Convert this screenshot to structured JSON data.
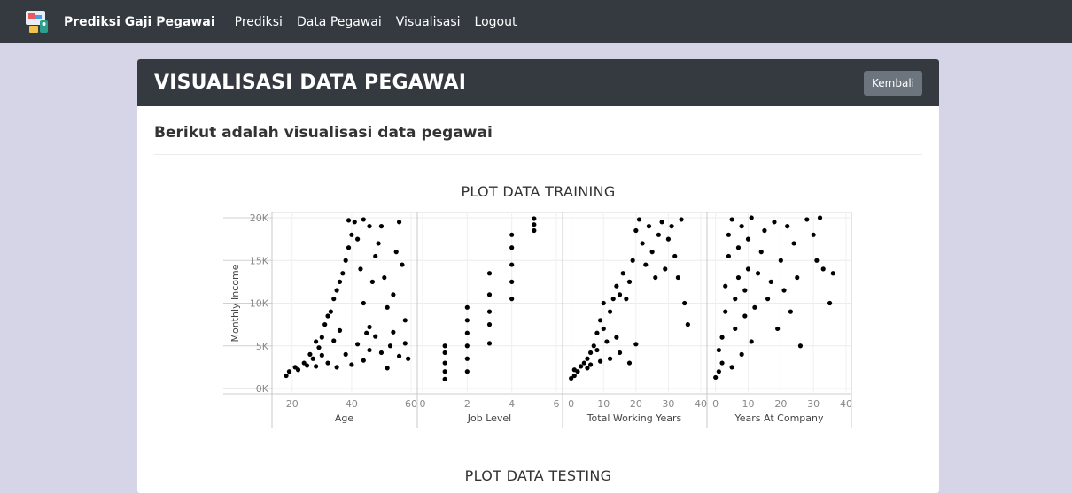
{
  "navbar": {
    "brand": "Prediksi Gaji Pegawai",
    "links": [
      {
        "label": "Prediksi"
      },
      {
        "label": "Data Pegawai"
      },
      {
        "label": "Visualisasi"
      },
      {
        "label": "Logout"
      }
    ]
  },
  "card": {
    "title": "VISUALISASI DATA PEGAWAI",
    "back_button": "Kembali",
    "intro": "Berikut adalah visualisasi data pegawai",
    "plot_training_title": "PLOT DATA TRAINING",
    "plot_testing_title": "PLOT DATA TESTING"
  },
  "chart_data": {
    "type": "scatter",
    "title": "PLOT DATA TRAINING",
    "ylabel": "Monthly Income",
    "ylim": [
      0,
      20000
    ],
    "y_ticks": [
      "0K",
      "5K",
      "10K",
      "15K",
      "20K"
    ],
    "y_tick_values": [
      0,
      5000,
      10000,
      15000,
      20000
    ],
    "grid": true,
    "panels": [
      {
        "xlabel": "Age",
        "xlim": [
          15,
          60
        ],
        "x_ticks": [
          20,
          40,
          60
        ],
        "x_tick_labels": [
          "20",
          "40",
          "60"
        ],
        "points": [
          [
            18,
            1500
          ],
          [
            19,
            2000
          ],
          [
            21,
            2500
          ],
          [
            22,
            2200
          ],
          [
            24,
            3000
          ],
          [
            25,
            2700
          ],
          [
            26,
            4000
          ],
          [
            27,
            3500
          ],
          [
            28,
            5500
          ],
          [
            29,
            4800
          ],
          [
            30,
            6000
          ],
          [
            31,
            7500
          ],
          [
            32,
            8500
          ],
          [
            33,
            9000
          ],
          [
            34,
            10500
          ],
          [
            35,
            11500
          ],
          [
            36,
            12500
          ],
          [
            37,
            13500
          ],
          [
            38,
            15000
          ],
          [
            39,
            16500
          ],
          [
            40,
            18000
          ],
          [
            41,
            19500
          ],
          [
            42,
            17500
          ],
          [
            43,
            14000
          ],
          [
            44,
            10000
          ],
          [
            45,
            6500
          ],
          [
            46,
            4500
          ],
          [
            47,
            12500
          ],
          [
            48,
            15500
          ],
          [
            49,
            17000
          ],
          [
            50,
            19000
          ],
          [
            51,
            13000
          ],
          [
            52,
            9500
          ],
          [
            53,
            5000
          ],
          [
            54,
            11000
          ],
          [
            55,
            16000
          ],
          [
            56,
            19500
          ],
          [
            57,
            14500
          ],
          [
            58,
            8000
          ],
          [
            59,
            3500
          ],
          [
            32,
            3000
          ],
          [
            35,
            2500
          ],
          [
            38,
            4000
          ],
          [
            40,
            2800
          ],
          [
            42,
            5200
          ],
          [
            44,
            3300
          ],
          [
            36,
            6800
          ],
          [
            34,
            5600
          ],
          [
            30,
            3900
          ],
          [
            28,
            2600
          ],
          [
            46,
            7200
          ],
          [
            48,
            6100
          ],
          [
            50,
            4200
          ],
          [
            52,
            2400
          ],
          [
            54,
            6600
          ],
          [
            56,
            3800
          ],
          [
            58,
            5300
          ],
          [
            44,
            19800
          ],
          [
            46,
            19000
          ],
          [
            39,
            19700
          ]
        ]
      },
      {
        "xlabel": "Job Level",
        "xlim": [
          0,
          6
        ],
        "x_ticks": [
          0,
          2,
          4,
          6
        ],
        "x_tick_labels": [
          "0",
          "2",
          "4",
          "6"
        ],
        "points": [
          [
            1,
            1100
          ],
          [
            1,
            2000
          ],
          [
            1,
            3000
          ],
          [
            1,
            4200
          ],
          [
            1,
            5000
          ],
          [
            2,
            2000
          ],
          [
            2,
            3500
          ],
          [
            2,
            5000
          ],
          [
            2,
            6500
          ],
          [
            2,
            8000
          ],
          [
            2,
            9500
          ],
          [
            3,
            5300
          ],
          [
            3,
            7500
          ],
          [
            3,
            9000
          ],
          [
            3,
            11000
          ],
          [
            3,
            13500
          ],
          [
            4,
            10500
          ],
          [
            4,
            12500
          ],
          [
            4,
            14500
          ],
          [
            4,
            16500
          ],
          [
            4,
            18000
          ],
          [
            5,
            18500
          ],
          [
            5,
            19200
          ],
          [
            5,
            19900
          ]
        ]
      },
      {
        "xlabel": "Total Working Years",
        "xlim": [
          -1,
          40
        ],
        "x_ticks": [
          0,
          10,
          20,
          30,
          40
        ],
        "x_tick_labels": [
          "0",
          "10",
          "20",
          "30",
          "40"
        ],
        "points": [
          [
            0,
            1200
          ],
          [
            1,
            1500
          ],
          [
            1,
            2200
          ],
          [
            2,
            2000
          ],
          [
            3,
            2600
          ],
          [
            4,
            3000
          ],
          [
            5,
            3500
          ],
          [
            5,
            2400
          ],
          [
            6,
            4200
          ],
          [
            7,
            5000
          ],
          [
            8,
            4500
          ],
          [
            8,
            6500
          ],
          [
            9,
            8000
          ],
          [
            10,
            7000
          ],
          [
            10,
            10000
          ],
          [
            11,
            5500
          ],
          [
            12,
            9000
          ],
          [
            13,
            10500
          ],
          [
            14,
            12000
          ],
          [
            15,
            11000
          ],
          [
            16,
            13500
          ],
          [
            17,
            10500
          ],
          [
            18,
            12500
          ],
          [
            19,
            15000
          ],
          [
            20,
            18500
          ],
          [
            21,
            19800
          ],
          [
            22,
            17000
          ],
          [
            23,
            14500
          ],
          [
            24,
            19000
          ],
          [
            25,
            16000
          ],
          [
            26,
            13000
          ],
          [
            27,
            18000
          ],
          [
            28,
            19500
          ],
          [
            29,
            14000
          ],
          [
            30,
            17500
          ],
          [
            31,
            19000
          ],
          [
            32,
            15500
          ],
          [
            33,
            13000
          ],
          [
            34,
            19800
          ],
          [
            35,
            10000
          ],
          [
            36,
            7500
          ],
          [
            12,
            3500
          ],
          [
            15,
            4200
          ],
          [
            18,
            3000
          ],
          [
            6,
            2800
          ],
          [
            9,
            3200
          ],
          [
            14,
            6000
          ],
          [
            20,
            5200
          ]
        ]
      },
      {
        "xlabel": "Years At Company",
        "xlim": [
          -1,
          40
        ],
        "x_ticks": [
          0,
          10,
          20,
          30,
          40
        ],
        "x_tick_labels": [
          "0",
          "10",
          "20",
          "30",
          "40"
        ],
        "points": [
          [
            0,
            1300
          ],
          [
            1,
            2000
          ],
          [
            1,
            4500
          ],
          [
            2,
            3000
          ],
          [
            2,
            6000
          ],
          [
            3,
            9000
          ],
          [
            3,
            12000
          ],
          [
            4,
            15500
          ],
          [
            4,
            18000
          ],
          [
            5,
            19800
          ],
          [
            5,
            2500
          ],
          [
            6,
            7000
          ],
          [
            6,
            10500
          ],
          [
            7,
            13000
          ],
          [
            7,
            16500
          ],
          [
            8,
            19000
          ],
          [
            8,
            4000
          ],
          [
            9,
            8500
          ],
          [
            9,
            11500
          ],
          [
            10,
            14000
          ],
          [
            10,
            17500
          ],
          [
            11,
            20000
          ],
          [
            11,
            5500
          ],
          [
            12,
            9500
          ],
          [
            13,
            13500
          ],
          [
            14,
            16000
          ],
          [
            15,
            18500
          ],
          [
            16,
            10500
          ],
          [
            17,
            12500
          ],
          [
            18,
            19500
          ],
          [
            19,
            7000
          ],
          [
            20,
            15000
          ],
          [
            21,
            11500
          ],
          [
            22,
            19000
          ],
          [
            23,
            9000
          ],
          [
            24,
            17000
          ],
          [
            25,
            13000
          ],
          [
            26,
            5000
          ],
          [
            28,
            19800
          ],
          [
            30,
            18000
          ],
          [
            31,
            15000
          ],
          [
            32,
            20000
          ],
          [
            33,
            14000
          ],
          [
            35,
            10000
          ],
          [
            36,
            13500
          ]
        ]
      }
    ]
  }
}
